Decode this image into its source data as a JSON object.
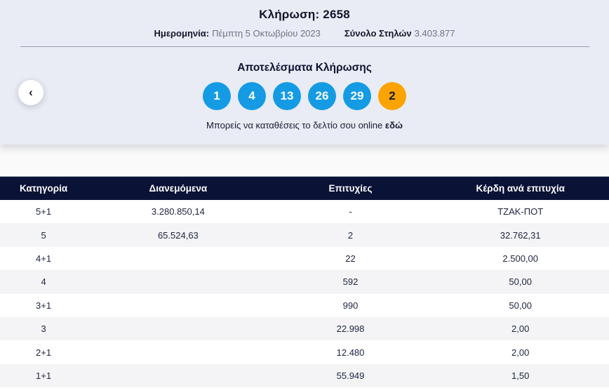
{
  "colors": {
    "section-bg": "#e9ecf4",
    "ball-blue": "#149be4",
    "ball-joker": "#fba300",
    "header-bg": "#0a1236"
  },
  "header": {
    "title": "Κλήρωση: 2658",
    "date_label": "Ημερομηνία:",
    "date_value": "Πέμπτη 5 Οκτωβρίου 2023",
    "columns_label": "Σύνολο Στηλών",
    "columns_value": "3.403.877"
  },
  "results": {
    "title": "Αποτελέσματα Κλήρωσης",
    "numbers": [
      "1",
      "4",
      "13",
      "26",
      "29",
      "2"
    ],
    "deposit_text": "Μπορείς να καταθέσεις το δελτίο σου online",
    "deposit_link": "εδώ"
  },
  "nav": {
    "prev_icon": "‹"
  },
  "table": {
    "columns": [
      "Κατηγορία",
      "Διανεμόμενα",
      "Επιτυχίες",
      "Κέρδη ανά επιτυχία"
    ],
    "rows": [
      {
        "category": "5+1",
        "distributed": "3.280.850,14",
        "winners": "-",
        "prize": "ΤΖΑΚ-ΠΟΤ"
      },
      {
        "category": "5",
        "distributed": "65.524,63",
        "winners": "2",
        "prize": "32.762,31"
      },
      {
        "category": "4+1",
        "distributed": "",
        "winners": "22",
        "prize": "2.500,00"
      },
      {
        "category": "4",
        "distributed": "",
        "winners": "592",
        "prize": "50,00"
      },
      {
        "category": "3+1",
        "distributed": "",
        "winners": "990",
        "prize": "50,00"
      },
      {
        "category": "3",
        "distributed": "",
        "winners": "22.998",
        "prize": "2,00"
      },
      {
        "category": "2+1",
        "distributed": "",
        "winners": "12.480",
        "prize": "2,00"
      },
      {
        "category": "1+1",
        "distributed": "",
        "winners": "55.949",
        "prize": "1,50"
      }
    ]
  }
}
